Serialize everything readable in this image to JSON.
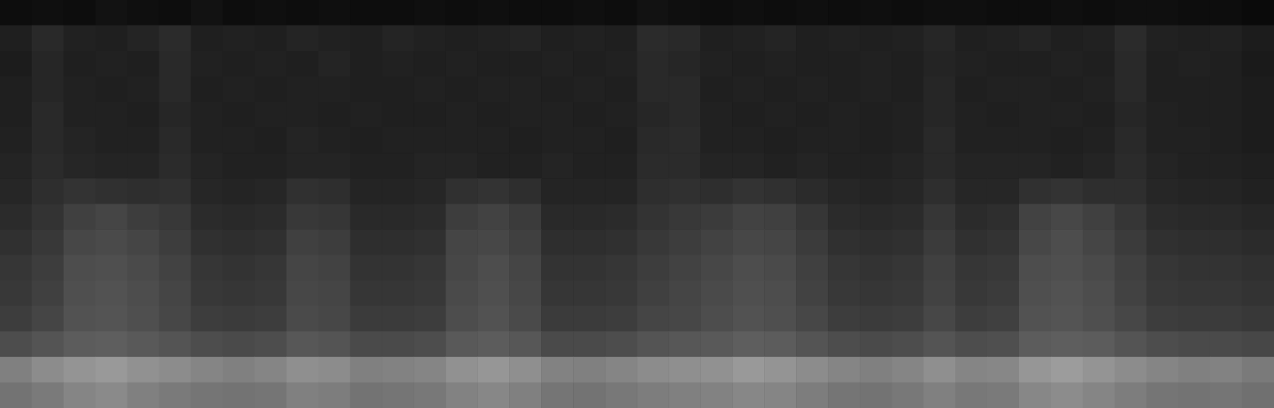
{
  "chart_data": {
    "type": "heatmap",
    "tick_labels": false,
    "grid": false,
    "color_range": [
      0,
      100
    ],
    "cells": [
      [
        5,
        6,
        5,
        7,
        6,
        5,
        7,
        5,
        6,
        5,
        6,
        5,
        5,
        6,
        5,
        6,
        5,
        5,
        6,
        5,
        7,
        6,
        5,
        6,
        5,
        6,
        5,
        6,
        5,
        6,
        6,
        5,
        5,
        6,
        5,
        6,
        6,
        5,
        5,
        4
      ],
      [
        12,
        16,
        13,
        12,
        14,
        17,
        12,
        13,
        12,
        14,
        13,
        12,
        14,
        13,
        12,
        13,
        14,
        12,
        13,
        12,
        17,
        16,
        12,
        13,
        14,
        12,
        13,
        12,
        13,
        15,
        12,
        13,
        14,
        12,
        13,
        17,
        13,
        12,
        13,
        11
      ],
      [
        11,
        15,
        12,
        13,
        12,
        16,
        13,
        12,
        13,
        12,
        14,
        12,
        13,
        12,
        13,
        12,
        12,
        13,
        12,
        13,
        16,
        15,
        13,
        12,
        13,
        12,
        12,
        13,
        12,
        14,
        13,
        12,
        12,
        13,
        12,
        16,
        12,
        13,
        12,
        10
      ],
      [
        12,
        15,
        13,
        12,
        13,
        16,
        12,
        13,
        12,
        13,
        13,
        12,
        12,
        13,
        12,
        13,
        13,
        12,
        13,
        12,
        16,
        16,
        12,
        13,
        12,
        13,
        12,
        13,
        12,
        15,
        12,
        13,
        13,
        12,
        13,
        16,
        12,
        12,
        12,
        11
      ],
      [
        12,
        16,
        13,
        13,
        12,
        15,
        13,
        12,
        13,
        13,
        12,
        13,
        12,
        12,
        13,
        12,
        13,
        13,
        12,
        13,
        15,
        16,
        13,
        12,
        13,
        12,
        13,
        12,
        13,
        15,
        13,
        12,
        13,
        13,
        12,
        15,
        13,
        12,
        12,
        11
      ],
      [
        13,
        16,
        14,
        13,
        13,
        16,
        13,
        13,
        12,
        14,
        13,
        12,
        13,
        13,
        13,
        13,
        12,
        13,
        13,
        12,
        16,
        17,
        13,
        13,
        12,
        13,
        13,
        12,
        13,
        16,
        13,
        13,
        13,
        12,
        13,
        16,
        13,
        13,
        12,
        11
      ],
      [
        14,
        17,
        15,
        14,
        14,
        17,
        14,
        13,
        13,
        14,
        14,
        13,
        13,
        14,
        14,
        13,
        13,
        14,
        13,
        13,
        17,
        17,
        14,
        14,
        13,
        14,
        13,
        13,
        14,
        16,
        14,
        14,
        14,
        13,
        14,
        17,
        14,
        13,
        13,
        12
      ],
      [
        15,
        18,
        20,
        19,
        18,
        19,
        15,
        14,
        15,
        19,
        18,
        14,
        14,
        15,
        19,
        20,
        18,
        14,
        14,
        14,
        18,
        19,
        18,
        20,
        19,
        17,
        15,
        14,
        15,
        18,
        15,
        15,
        19,
        20,
        18,
        18,
        15,
        14,
        14,
        13
      ],
      [
        17,
        20,
        25,
        27,
        24,
        22,
        17,
        16,
        17,
        22,
        21,
        16,
        16,
        17,
        24,
        26,
        23,
        16,
        16,
        17,
        20,
        22,
        23,
        26,
        25,
        21,
        17,
        16,
        17,
        21,
        17,
        18,
        26,
        28,
        25,
        21,
        17,
        16,
        16,
        15
      ],
      [
        19,
        22,
        28,
        29,
        27,
        24,
        19,
        18,
        19,
        25,
        24,
        18,
        18,
        19,
        27,
        28,
        25,
        18,
        18,
        19,
        22,
        24,
        26,
        28,
        27,
        23,
        19,
        18,
        19,
        23,
        19,
        20,
        28,
        30,
        27,
        23,
        19,
        18,
        18,
        17
      ],
      [
        21,
        24,
        30,
        31,
        29,
        26,
        21,
        20,
        21,
        27,
        26,
        20,
        20,
        21,
        28,
        30,
        27,
        20,
        20,
        21,
        24,
        26,
        28,
        30,
        29,
        25,
        21,
        20,
        21,
        25,
        21,
        22,
        30,
        31,
        29,
        25,
        21,
        20,
        20,
        19
      ],
      [
        22,
        25,
        31,
        32,
        30,
        27,
        22,
        21,
        22,
        28,
        27,
        21,
        21,
        22,
        29,
        31,
        28,
        21,
        21,
        22,
        25,
        27,
        29,
        31,
        30,
        26,
        22,
        21,
        22,
        26,
        22,
        23,
        31,
        32,
        30,
        26,
        22,
        21,
        21,
        20
      ],
      [
        24,
        27,
        32,
        33,
        31,
        28,
        24,
        23,
        24,
        29,
        28,
        23,
        23,
        24,
        30,
        32,
        29,
        23,
        23,
        24,
        27,
        28,
        30,
        32,
        31,
        28,
        24,
        23,
        24,
        28,
        24,
        25,
        32,
        33,
        31,
        28,
        24,
        23,
        23,
        22
      ],
      [
        30,
        33,
        36,
        37,
        35,
        33,
        30,
        29,
        30,
        34,
        33,
        29,
        29,
        30,
        35,
        36,
        34,
        29,
        29,
        30,
        33,
        34,
        35,
        37,
        36,
        33,
        30,
        29,
        30,
        33,
        30,
        31,
        36,
        37,
        36,
        33,
        30,
        29,
        29,
        28
      ],
      [
        50,
        55,
        58,
        60,
        57,
        55,
        52,
        50,
        52,
        56,
        55,
        50,
        51,
        52,
        57,
        59,
        56,
        51,
        50,
        52,
        55,
        56,
        57,
        60,
        58,
        55,
        52,
        50,
        52,
        56,
        52,
        53,
        59,
        61,
        58,
        55,
        52,
        50,
        51,
        48
      ],
      [
        45,
        48,
        52,
        54,
        50,
        48,
        46,
        45,
        46,
        50,
        49,
        45,
        46,
        47,
        51,
        53,
        50,
        46,
        45,
        47,
        49,
        50,
        51,
        53,
        52,
        49,
        46,
        45,
        47,
        50,
        47,
        48,
        53,
        55,
        52,
        49,
        46,
        45,
        46,
        44
      ]
    ]
  }
}
